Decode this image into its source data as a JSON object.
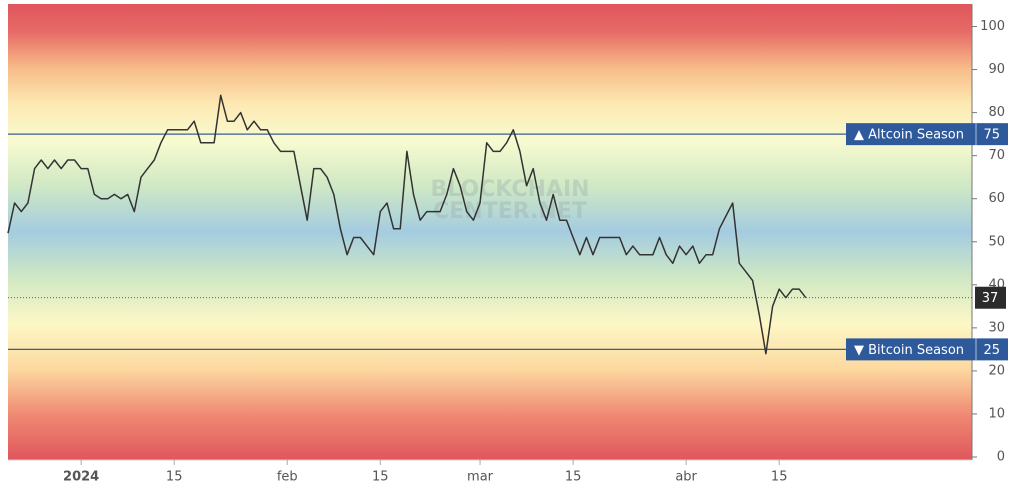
{
  "chart_data": {
    "type": "line",
    "x": [
      "2023-12-21",
      "2023-12-22",
      "2023-12-23",
      "2023-12-24",
      "2023-12-25",
      "2023-12-26",
      "2023-12-27",
      "2023-12-28",
      "2023-12-29",
      "2023-12-30",
      "2023-12-31",
      "2024-01-01",
      "2024-01-02",
      "2024-01-03",
      "2024-01-04",
      "2024-01-05",
      "2024-01-06",
      "2024-01-07",
      "2024-01-08",
      "2024-01-09",
      "2024-01-10",
      "2024-01-11",
      "2024-01-12",
      "2024-01-13",
      "2024-01-14",
      "2024-01-15",
      "2024-01-16",
      "2024-01-17",
      "2024-01-18",
      "2024-01-19",
      "2024-01-20",
      "2024-01-21",
      "2024-01-22",
      "2024-01-23",
      "2024-01-24",
      "2024-01-25",
      "2024-01-26",
      "2024-01-27",
      "2024-01-28",
      "2024-01-29",
      "2024-01-30",
      "2024-01-31",
      "2024-02-01",
      "2024-02-02",
      "2024-02-03",
      "2024-02-04",
      "2024-02-05",
      "2024-02-06",
      "2024-02-07",
      "2024-02-08",
      "2024-02-09",
      "2024-02-10",
      "2024-02-11",
      "2024-02-12",
      "2024-02-13",
      "2024-02-14",
      "2024-02-15",
      "2024-02-16",
      "2024-02-17",
      "2024-02-18",
      "2024-02-19",
      "2024-02-20",
      "2024-02-21",
      "2024-02-22",
      "2024-02-23",
      "2024-02-24",
      "2024-02-25",
      "2024-02-26",
      "2024-02-27",
      "2024-02-28",
      "2024-02-29",
      "2024-03-01",
      "2024-03-02",
      "2024-03-03",
      "2024-03-04",
      "2024-03-05",
      "2024-03-06",
      "2024-03-07",
      "2024-03-08",
      "2024-03-09",
      "2024-03-10",
      "2024-03-11",
      "2024-03-12",
      "2024-03-13",
      "2024-03-14",
      "2024-03-15",
      "2024-03-16",
      "2024-03-17",
      "2024-03-18",
      "2024-03-19",
      "2024-03-20",
      "2024-03-21",
      "2024-03-22",
      "2024-03-23",
      "2024-03-24",
      "2024-03-25",
      "2024-03-26",
      "2024-03-27",
      "2024-03-28",
      "2024-03-29",
      "2024-03-30",
      "2024-03-31",
      "2024-04-01",
      "2024-04-02",
      "2024-04-03",
      "2024-04-04",
      "2024-04-05",
      "2024-04-06",
      "2024-04-07",
      "2024-04-08",
      "2024-04-09",
      "2024-04-10",
      "2024-04-11",
      "2024-04-12",
      "2024-04-13",
      "2024-04-14",
      "2024-04-15",
      "2024-04-16",
      "2024-04-17",
      "2024-04-18",
      "2024-04-19"
    ],
    "series": [
      {
        "color": "#333333",
        "values": [
          52,
          59,
          57,
          59,
          67,
          69,
          67,
          69,
          67,
          69,
          69,
          67,
          67,
          61,
          60,
          60,
          61,
          60,
          61,
          57,
          65,
          67,
          69,
          73,
          76,
          76,
          76,
          76,
          78,
          73,
          73,
          73,
          84,
          78,
          78,
          80,
          76,
          78,
          76,
          76,
          73,
          71,
          71,
          71,
          63,
          55,
          67,
          67,
          65,
          61,
          53,
          47,
          51,
          51,
          49,
          47,
          57,
          59,
          53,
          53,
          71,
          61,
          55,
          57,
          57,
          57,
          61,
          67,
          63,
          57,
          55,
          59,
          73,
          71,
          71,
          73,
          76,
          71,
          63,
          67,
          59,
          55,
          61,
          55,
          55,
          51,
          47,
          51,
          47,
          51,
          51,
          51,
          51,
          47,
          49,
          47,
          47,
          47,
          51,
          47,
          45,
          49,
          47,
          49,
          45,
          47,
          47,
          53,
          56,
          59,
          45,
          43,
          41,
          33,
          24,
          35,
          39,
          37,
          39,
          39,
          37
        ]
      }
    ],
    "xlim": [
      "2023-12-21",
      "2024-05-14"
    ],
    "xticks": [
      {
        "value": "2024-01-01",
        "label": "2024"
      },
      {
        "value": "2024-01-15",
        "label": "15"
      },
      {
        "value": "2024-02-01",
        "label": "feb"
      },
      {
        "value": "2024-02-15",
        "label": "15"
      },
      {
        "value": "2024-03-01",
        "label": "mar"
      },
      {
        "value": "2024-03-15",
        "label": "15"
      },
      {
        "value": "2024-04-01",
        "label": "abr"
      },
      {
        "value": "2024-04-15",
        "label": "15"
      }
    ],
    "ylim": [
      0,
      105
    ],
    "yticks": [
      0,
      10,
      20,
      30,
      40,
      50,
      60,
      70,
      80,
      90,
      100
    ],
    "thresholds": [
      {
        "label": "▲ Altcoin Season",
        "value": 75
      },
      {
        "label": "▼ Bitcoin Season",
        "value": 25
      }
    ],
    "watermark": [
      "BLOCKCHAIN",
      "CENTER.NET"
    ]
  }
}
